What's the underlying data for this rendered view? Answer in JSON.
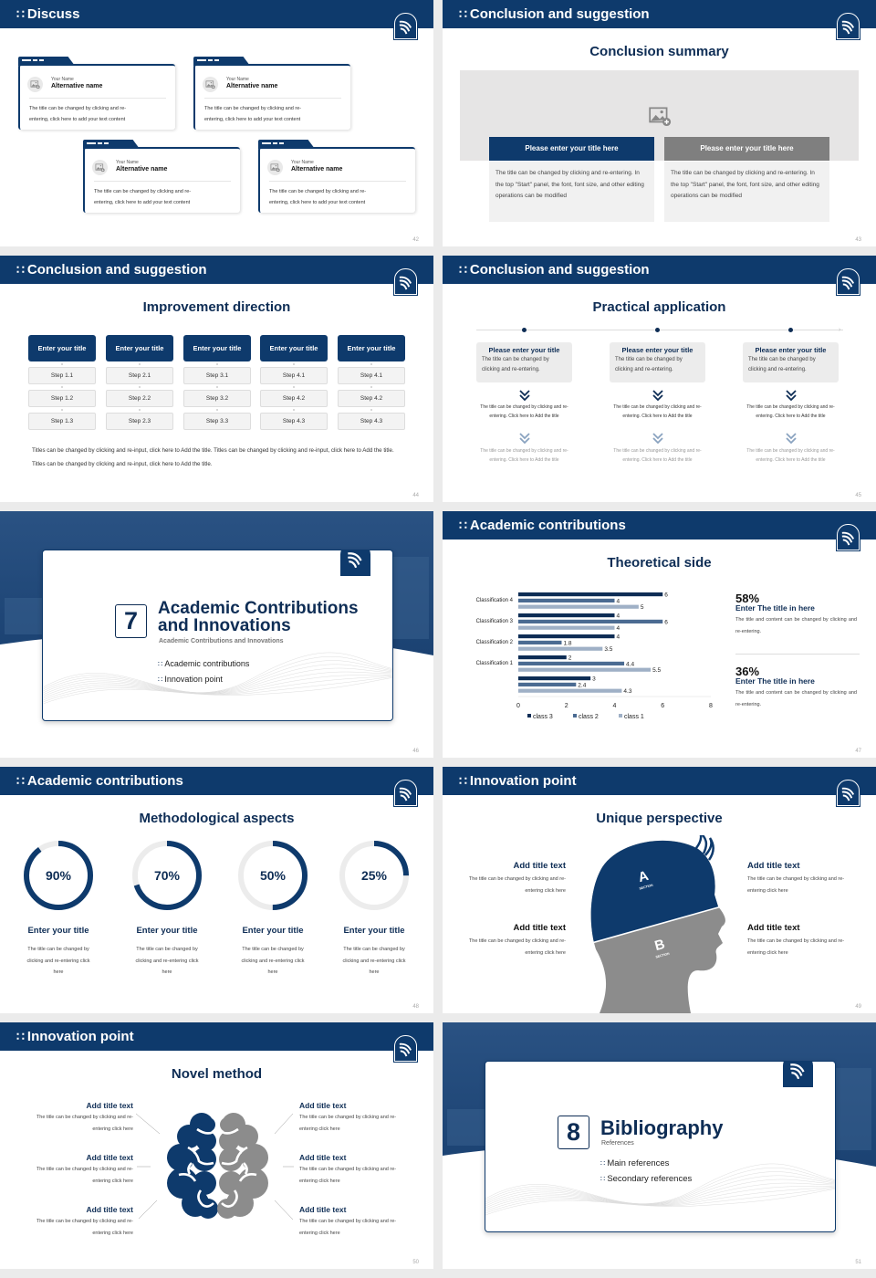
{
  "colors": {
    "navy": "#0e3a6c",
    "gray": "#8a8a8a",
    "class3": "#0e2d55",
    "class2": "#4b6b92",
    "class1": "#9fb0c6",
    "ring_track": "#ececec"
  },
  "icons": {
    "header": "grid-dots-icon",
    "logo": "university-logo",
    "image": "image-placeholder-icon",
    "chevron": "double-chevron-down-icon"
  },
  "slides": [
    {
      "page": "42",
      "header": "Discuss",
      "cards": [
        {
          "label": "Your Name",
          "name": "Alternative name",
          "text1": "The title can be changed by clicking and re-",
          "text2": "entering, click here to add your text content"
        },
        {
          "label": "Your Name",
          "name": "Alternative name",
          "text1": "The title can be changed by clicking and re-",
          "text2": "entering, click here to add your text content"
        },
        {
          "label": "Your Name",
          "name": "Alternative name",
          "text1": "The title can be changed by clicking and re-",
          "text2": "entering, click here to add your text content"
        },
        {
          "label": "Your Name",
          "name": "Alternative name",
          "text1": "The title can be changed by clicking and re-",
          "text2": "entering, click here to add your text content"
        }
      ]
    },
    {
      "page": "43",
      "header": "Conclusion and suggestion",
      "title": "Conclusion summary",
      "panels": [
        {
          "title": "Please enter your title here",
          "text": "The title can be changed by clicking and re-entering. In the top \"Start\" panel, the font, font size, and other editing operations can be modified"
        },
        {
          "title": "Please enter your title here",
          "text": "The title can be changed by clicking and re-entering. In the top \"Start\" panel, the font, font size, and other editing operations can be modified"
        }
      ]
    },
    {
      "page": "44",
      "header": "Conclusion and suggestion",
      "title": "Improvement direction",
      "columns": [
        {
          "title": "Enter your title",
          "steps": [
            "Step 1.1",
            "Step 1.2",
            "Step 1.3"
          ]
        },
        {
          "title": "Enter your title",
          "steps": [
            "Step 2.1",
            "Step 2.2",
            "Step 2.3"
          ]
        },
        {
          "title": "Enter your title",
          "steps": [
            "Step 3.1",
            "Step 3.2",
            "Step 3.3"
          ]
        },
        {
          "title": "Enter your title",
          "steps": [
            "Step 4.1",
            "Step 4.2",
            "Step 4.3"
          ]
        },
        {
          "title": "Enter your title",
          "steps": [
            "Step 4.1",
            "Step 4.2",
            "Step 4.3"
          ]
        }
      ],
      "note": "Titles can be changed by clicking and re-input, click here to Add the title. Titles can be changed by clicking and re-input, click here to Add the title. Titles can be changed by clicking and re-input, click here to Add the title."
    },
    {
      "page": "45",
      "header": "Conclusion and suggestion",
      "title": "Practical application",
      "items": [
        {
          "title": "Please enter your title",
          "text": "The title can be changed by clicking and re-entering.",
          "detail1": "The title can be changed by clicking and re-entering. Click here to Add the title",
          "detail2": "The title can be changed by clicking and re-entering. Click here to Add the title"
        },
        {
          "title": "Please enter your title",
          "text": "The title can be changed by clicking and re-entering.",
          "detail1": "The title can be changed by clicking and re-entering. Click here to Add the title",
          "detail2": "The title can be changed by clicking and re-entering. Click here to Add the title"
        },
        {
          "title": "Please enter your title",
          "text": "The title can be changed by clicking and re-entering.",
          "detail1": "The title can be changed by clicking and re-entering. Click here to Add the title",
          "detail2": "The title can be changed by clicking and re-entering. Click here to Add the title"
        }
      ]
    },
    {
      "page": "46",
      "number": "7",
      "title_line1": "Academic Contributions",
      "title_line2": "and Innovations",
      "subtitle": "Academic Contributions and Innovations",
      "bullets": [
        "Academic contributions",
        "Innovation point"
      ]
    },
    {
      "page": "47",
      "header": "Academic contributions",
      "title": "Theoretical side",
      "stats": [
        {
          "value": "58%",
          "title": "Enter The title in here",
          "text": "The title and content can be changed by clicking and re-entering."
        },
        {
          "value": "36%",
          "title": "Enter The title in here",
          "text": "The title and content can be changed by clicking and re-entering."
        }
      ]
    },
    {
      "page": "48",
      "header": "Academic contributions",
      "title": "Methodological aspects",
      "rings": [
        {
          "value": 90,
          "label": "90%",
          "title": "Enter your title",
          "text": "The title can be changed by clicking and re-entering click here"
        },
        {
          "value": 70,
          "label": "70%",
          "title": "Enter your title",
          "text": "The title can be changed by clicking and re-entering click here"
        },
        {
          "value": 50,
          "label": "50%",
          "title": "Enter your title",
          "text": "The title can be changed by clicking and re-entering click here"
        },
        {
          "value": 25,
          "label": "25%",
          "title": "Enter your title",
          "text": "The title can be changed by clicking and re-entering click here"
        }
      ]
    },
    {
      "page": "49",
      "header": "Innovation point",
      "title": "Unique perspective",
      "sections": [
        {
          "letter": "A",
          "label": "SECTION"
        },
        {
          "letter": "B",
          "label": "SECTION"
        }
      ],
      "points": [
        {
          "title": "Add title text",
          "text": "The title can be changed by clicking and re-entering click here"
        },
        {
          "title": "Add title text",
          "text": "The title can be changed by clicking and re-entering click here"
        },
        {
          "title": "Add title text",
          "text": "The title can be changed by clicking and re-entering click here"
        },
        {
          "title": "Add title text",
          "text": "The title can be changed by clicking and re-entering click here"
        }
      ]
    },
    {
      "page": "50",
      "header": "Innovation point",
      "title": "Novel method",
      "points": [
        {
          "title": "Add title text",
          "text": "The title can be changed by clicking and re-entering click here"
        },
        {
          "title": "Add title text",
          "text": "The title can be changed by clicking and re-entering click here"
        },
        {
          "title": "Add title text",
          "text": "The title can be changed by clicking and re-entering click here"
        },
        {
          "title": "Add title text",
          "text": "The title can be changed by clicking and re-entering click here"
        },
        {
          "title": "Add title text",
          "text": "The title can be changed by clicking and re-entering click here"
        },
        {
          "title": "Add title text",
          "text": "The title can be changed by clicking and re-entering click here"
        }
      ]
    },
    {
      "page": "51",
      "number": "8",
      "title_line1": "Bibliography",
      "subtitle": "References",
      "bullets": [
        "Main references",
        "Secondary references"
      ]
    }
  ],
  "chart_data": {
    "type": "bar",
    "orientation": "horizontal",
    "categories": [
      "Classification 4",
      "Classification 3",
      "Classification 2",
      "Classification 1",
      ""
    ],
    "series": [
      {
        "name": "class 3",
        "values": [
          6,
          4,
          4,
          2,
          3
        ]
      },
      {
        "name": "class 2",
        "values": [
          4,
          6,
          1.8,
          4.4,
          2.4
        ]
      },
      {
        "name": "class 1",
        "values": [
          5,
          4,
          3.5,
          5.5,
          4.3
        ]
      }
    ],
    "xlim": [
      0,
      8
    ],
    "xticks": [
      "0",
      "2",
      "4",
      "6",
      "8"
    ],
    "data_labels": true,
    "grid": false,
    "legend": "bottom"
  }
}
